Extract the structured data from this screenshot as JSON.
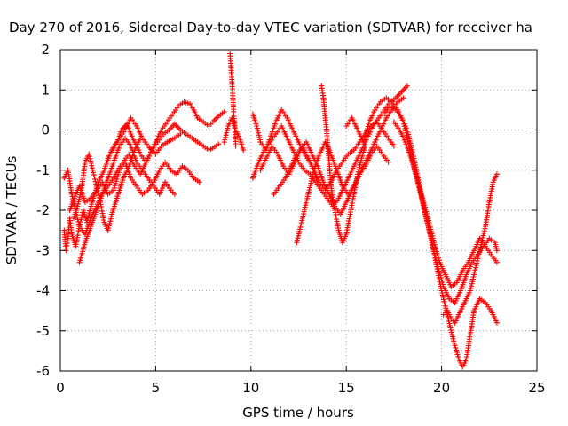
{
  "chart_data": {
    "type": "scatter",
    "title": "Day 270 of 2016, Sidereal Day-to-day VTEC variation (SDTVAR) for receiver ha",
    "xlabel": "GPS time / hours",
    "ylabel": "SDTVAR / TECUs",
    "xlim": [
      0,
      25
    ],
    "ylim": [
      -6,
      2
    ],
    "x_ticks": [
      0,
      5,
      10,
      15,
      20,
      25
    ],
    "y_ticks": [
      -6,
      -5,
      -4,
      -3,
      -2,
      -1,
      0,
      1,
      2
    ],
    "x_tick_labels": [
      "0",
      "5",
      "10",
      "15",
      "20",
      "25"
    ],
    "y_tick_labels": [
      "-6",
      "-5",
      "-4",
      "-3",
      "-2",
      "-1",
      "0",
      "1",
      "2"
    ],
    "grid": true,
    "marker": "plus",
    "color": "#ff0000",
    "series": [
      {
        "x": [
          0.2,
          0.3,
          0.4,
          0.5,
          0.6,
          0.8,
          1.0,
          1.2,
          1.4,
          1.6,
          1.8,
          2.0,
          2.3,
          2.6,
          3.0,
          3.2,
          3.5,
          3.7,
          4.0,
          4.2,
          4.5,
          4.8,
          5.0,
          5.3,
          5.6,
          5.9,
          6.2,
          6.5,
          6.8,
          7.0,
          7.2,
          7.5,
          7.8,
          8.0,
          8.3,
          8.6
        ],
        "y": [
          -2.5,
          -3.0,
          -2.7,
          -2.2,
          -2.6,
          -2.9,
          -2.4,
          -2.0,
          -2.3,
          -1.9,
          -1.6,
          -1.3,
          -1.0,
          -0.6,
          -0.3,
          0.0,
          0.15,
          -0.1,
          -0.4,
          -0.6,
          -0.8,
          -0.5,
          -0.3,
          0.0,
          0.2,
          0.4,
          0.6,
          0.7,
          0.65,
          0.5,
          0.3,
          0.2,
          0.1,
          0.2,
          0.35,
          0.45
        ]
      },
      {
        "x": [
          0.2,
          0.4,
          0.6,
          0.8,
          1.0,
          1.3,
          1.6,
          1.9,
          2.2,
          2.5,
          2.8,
          3.0,
          3.3,
          3.6,
          3.9,
          4.2,
          4.5,
          4.8,
          5.1,
          5.4,
          5.7,
          6.0,
          6.3,
          6.6,
          6.9,
          7.2,
          7.5,
          7.8,
          8.0,
          8.3
        ],
        "y": [
          -1.2,
          -1.0,
          -1.6,
          -2.0,
          -2.4,
          -2.6,
          -2.2,
          -1.9,
          -1.6,
          -1.4,
          -1.2,
          -1.0,
          -0.8,
          -0.6,
          -0.9,
          -1.1,
          -0.8,
          -0.5,
          -0.3,
          -0.1,
          0.0,
          0.15,
          0.0,
          -0.1,
          -0.2,
          -0.3,
          -0.4,
          -0.5,
          -0.45,
          -0.35
        ]
      },
      {
        "x": [
          0.5,
          0.8,
          1.0,
          1.3,
          1.6,
          1.9,
          2.2,
          2.5,
          2.8,
          3.1,
          3.4,
          3.7,
          4.0,
          4.3,
          4.6,
          4.9,
          5.2,
          5.5,
          5.8,
          6.1,
          6.4,
          6.7,
          7.0,
          7.3
        ],
        "y": [
          -2.0,
          -1.6,
          -1.4,
          -1.8,
          -1.7,
          -1.5,
          -1.3,
          -1.6,
          -1.5,
          -1.0,
          -0.8,
          -1.2,
          -1.4,
          -1.6,
          -1.5,
          -1.3,
          -1.0,
          -0.8,
          -1.0,
          -1.1,
          -0.9,
          -1.0,
          -1.2,
          -1.3
        ]
      },
      {
        "x": [
          1.0,
          1.3,
          1.6,
          1.9,
          2.2,
          2.5,
          2.8,
          3.1,
          3.4,
          3.7,
          4.0,
          4.3,
          4.6,
          4.9,
          5.2,
          5.5,
          5.8,
          6.0
        ],
        "y": [
          -3.3,
          -2.8,
          -2.4,
          -2.0,
          -1.6,
          -1.2,
          -0.8,
          -0.4,
          -0.2,
          -0.4,
          -0.8,
          -1.0,
          -1.2,
          -1.4,
          -1.6,
          -1.3,
          -1.5,
          -1.6
        ]
      },
      {
        "x": [
          0.7,
          0.9,
          1.1,
          1.3,
          1.5,
          1.7,
          1.9,
          2.1,
          2.3,
          2.5,
          2.7,
          2.9,
          3.1,
          3.3,
          3.6,
          3.9,
          4.2
        ],
        "y": [
          -2.2,
          -1.9,
          -1.5,
          -0.8,
          -0.6,
          -1.0,
          -1.4,
          -1.8,
          -2.3,
          -2.5,
          -2.1,
          -1.8,
          -1.5,
          -1.2,
          -0.9,
          -0.5,
          -0.2
        ]
      },
      {
        "x": [
          2.5,
          2.8,
          3.1,
          3.4,
          3.7,
          4.0,
          4.3,
          4.6,
          5.0,
          5.3,
          5.6,
          6.0,
          6.3
        ],
        "y": [
          -0.7,
          -0.4,
          -0.2,
          0.0,
          0.3,
          0.1,
          -0.2,
          -0.4,
          -0.6,
          -0.4,
          -0.3,
          -0.2,
          -0.1
        ]
      },
      {
        "x": [
          8.9,
          8.95,
          9.0,
          9.05,
          9.1,
          9.15,
          9.2
        ],
        "y": [
          1.9,
          1.6,
          1.2,
          0.8,
          0.4,
          0.0,
          -0.4
        ]
      },
      {
        "x": [
          8.6,
          8.8,
          9.0,
          9.2,
          9.4,
          9.6
        ],
        "y": [
          -0.3,
          0.1,
          0.3,
          0.0,
          -0.2,
          -0.5
        ]
      },
      {
        "x": [
          10.1,
          10.3,
          10.5,
          10.8,
          11.0,
          11.3,
          11.6,
          11.9,
          12.2,
          12.5,
          12.8,
          13.1,
          13.3,
          13.5
        ],
        "y": [
          0.4,
          0.1,
          -0.3,
          -0.5,
          -0.2,
          0.2,
          0.5,
          0.3,
          0.0,
          -0.3,
          -0.6,
          -0.8,
          -1.0,
          -1.3
        ]
      },
      {
        "x": [
          10.1,
          10.4,
          10.7,
          11.0,
          11.3,
          11.6,
          11.9,
          12.2,
          12.5,
          12.8,
          13.1,
          13.4,
          13.7,
          14.0,
          14.3,
          14.6,
          14.9,
          15.2,
          15.5,
          15.8,
          16.1,
          16.4,
          16.7,
          17.0,
          17.3,
          17.6,
          17.9,
          18.2
        ],
        "y": [
          -1.2,
          -0.8,
          -0.5,
          -0.3,
          -0.1,
          0.1,
          -0.2,
          -0.5,
          -0.8,
          -1.0,
          -1.1,
          -1.3,
          -1.5,
          -1.7,
          -1.9,
          -1.7,
          -1.4,
          -1.1,
          -0.8,
          -0.5,
          -0.2,
          0.1,
          0.3,
          0.5,
          0.7,
          0.8,
          0.95,
          1.1
        ]
      },
      {
        "x": [
          10.5,
          10.8,
          11.1,
          11.4,
          11.7,
          12.0,
          12.3,
          12.6,
          12.9,
          13.2,
          13.5,
          13.8,
          14.1,
          14.4,
          14.7,
          15.0,
          15.3,
          15.6,
          15.9,
          16.2,
          16.5,
          16.8,
          17.1,
          17.4,
          17.7,
          18.0
        ],
        "y": [
          -1.0,
          -0.7,
          -0.4,
          -0.6,
          -0.9,
          -1.1,
          -0.8,
          -0.5,
          -0.3,
          -0.6,
          -0.9,
          -1.3,
          -1.6,
          -1.9,
          -2.1,
          -1.8,
          -1.5,
          -1.2,
          -0.9,
          -0.6,
          -0.3,
          0.0,
          0.3,
          0.5,
          0.7,
          0.8
        ]
      },
      {
        "x": [
          11.2,
          11.5,
          11.8,
          12.1,
          12.4,
          12.7,
          13.0,
          13.3,
          13.6,
          13.9,
          14.2,
          14.5,
          14.8,
          15.1,
          15.4,
          15.7,
          16.0,
          16.3,
          16.6,
          16.9,
          17.2,
          17.5
        ],
        "y": [
          -1.6,
          -1.4,
          -1.2,
          -0.9,
          -0.6,
          -0.4,
          -0.7,
          -1.0,
          -1.3,
          -1.5,
          -1.3,
          -1.0,
          -0.8,
          -0.6,
          -0.5,
          -0.3,
          -0.1,
          0.1,
          0.2,
          0.0,
          -0.2,
          -0.4
        ]
      },
      {
        "x": [
          12.4,
          12.7,
          13.0,
          13.3,
          13.6,
          13.9,
          14.2,
          14.5,
          14.8,
          15.1,
          15.4,
          15.7,
          16.0,
          16.3,
          16.6,
          16.9,
          17.2
        ],
        "y": [
          -2.8,
          -2.2,
          -1.6,
          -1.0,
          -0.6,
          -0.3,
          -0.6,
          -1.0,
          -1.4,
          -1.6,
          -1.4,
          -1.1,
          -0.9,
          -0.6,
          -0.4,
          -0.6,
          -0.8
        ]
      },
      {
        "x": [
          13.7,
          13.8,
          13.9,
          14.0,
          14.1,
          14.2,
          14.4,
          14.6,
          14.8,
          15.0,
          15.2,
          15.4,
          15.6,
          15.8,
          16.0
        ],
        "y": [
          1.1,
          0.8,
          0.3,
          -0.2,
          -0.8,
          -1.4,
          -2.0,
          -2.5,
          -2.8,
          -2.6,
          -2.1,
          -1.6,
          -1.1,
          -0.7,
          -0.4
        ]
      },
      {
        "x": [
          15.0,
          15.3,
          15.6,
          15.9,
          16.2,
          16.5,
          16.8,
          17.1,
          17.4,
          17.7,
          18.0,
          18.3,
          18.6,
          18.9,
          19.2,
          19.5,
          19.8,
          20.1,
          20.4,
          20.7,
          21.0,
          21.3,
          21.6,
          21.9,
          22.2,
          22.5,
          22.8,
          22.9
        ],
        "y": [
          0.1,
          0.3,
          0.0,
          -0.3,
          0.2,
          0.5,
          0.7,
          0.8,
          0.7,
          0.5,
          0.2,
          -0.4,
          -1.0,
          -1.6,
          -2.2,
          -2.8,
          -3.4,
          -3.9,
          -4.2,
          -4.3,
          -4.0,
          -3.6,
          -3.3,
          -3.1,
          -2.9,
          -2.7,
          -2.8,
          -3.0
        ]
      },
      {
        "x": [
          17.0,
          17.3,
          17.6,
          17.9,
          18.2,
          18.5,
          18.8,
          19.1,
          19.4,
          19.7,
          20.0,
          20.3,
          20.6,
          20.9,
          21.1,
          21.3,
          21.5,
          21.7,
          22.0,
          22.3,
          22.6,
          22.9
        ],
        "y": [
          0.4,
          0.6,
          0.5,
          0.3,
          0.0,
          -0.6,
          -1.3,
          -2.0,
          -2.6,
          -3.3,
          -4.0,
          -4.6,
          -5.2,
          -5.7,
          -5.9,
          -5.7,
          -5.1,
          -4.5,
          -4.2,
          -4.3,
          -4.5,
          -4.8
        ]
      },
      {
        "x": [
          17.5,
          17.8,
          18.1,
          18.4,
          18.7,
          19.0,
          19.3,
          19.6,
          19.9,
          20.2,
          20.5,
          20.8,
          21.1,
          21.4,
          21.7,
          22.0,
          22.3,
          22.6,
          22.9
        ],
        "y": [
          0.2,
          0.0,
          -0.3,
          -0.7,
          -1.2,
          -1.7,
          -2.2,
          -2.8,
          -3.3,
          -3.6,
          -3.9,
          -3.8,
          -3.5,
          -3.3,
          -3.0,
          -2.7,
          -2.9,
          -3.1,
          -3.3
        ]
      },
      {
        "x": [
          20.1,
          20.3,
          20.5,
          20.7,
          20.9,
          21.1,
          21.3,
          21.5,
          21.7,
          21.9,
          22.1,
          22.3,
          22.5,
          22.7,
          22.9
        ],
        "y": [
          -4.6,
          -4.5,
          -4.7,
          -4.8,
          -4.6,
          -4.4,
          -4.2,
          -4.0,
          -3.6,
          -3.2,
          -2.8,
          -2.4,
          -1.8,
          -1.3,
          -1.1
        ]
      }
    ]
  }
}
